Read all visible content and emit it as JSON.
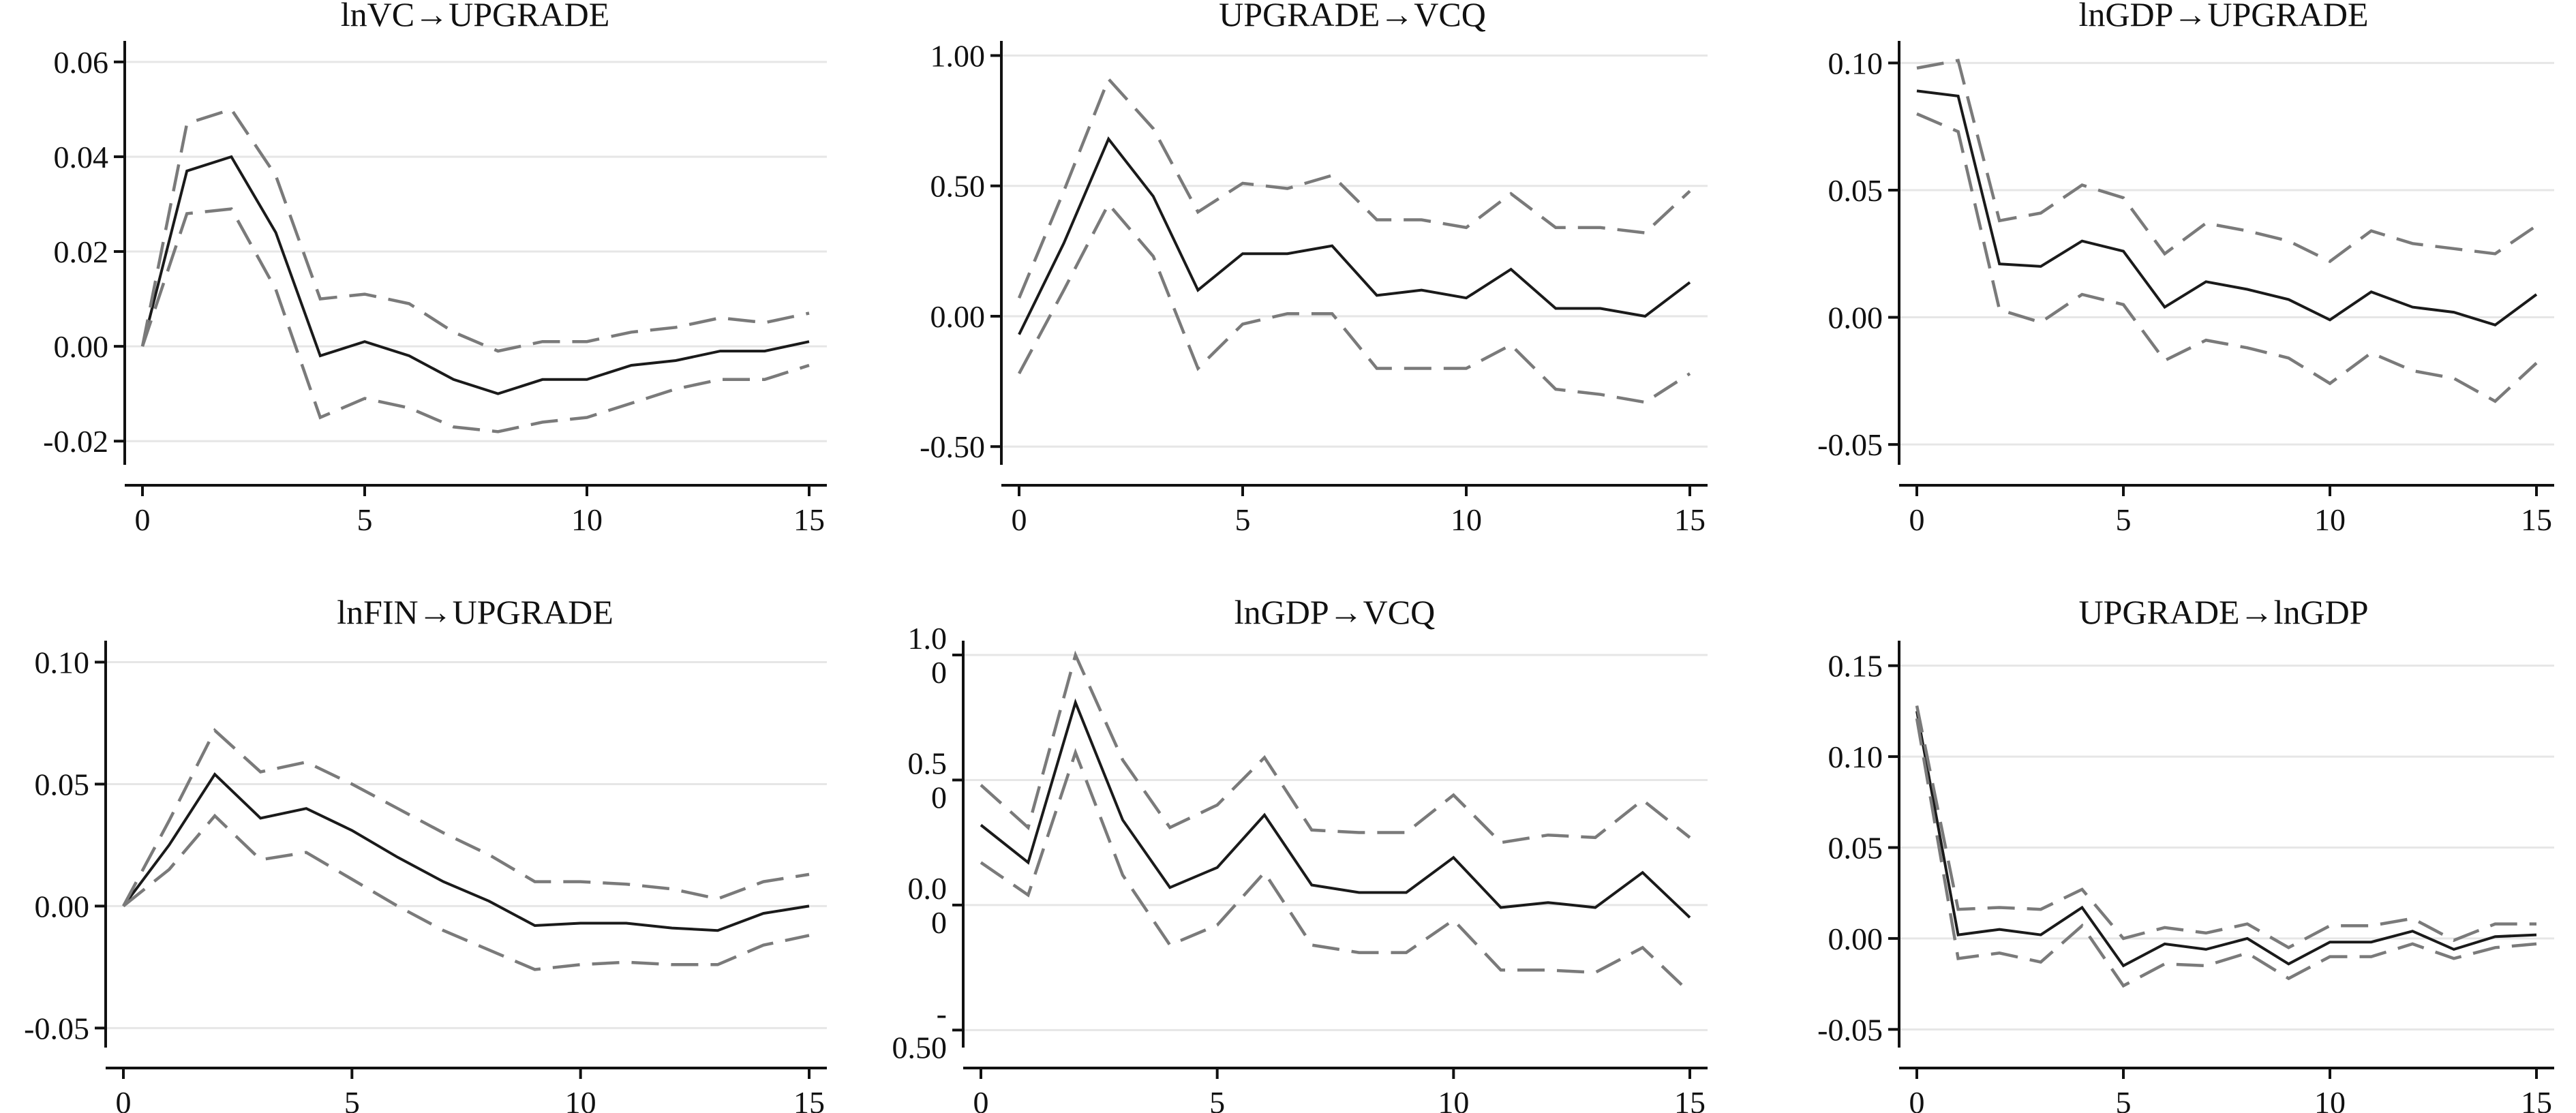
{
  "chart_data": [
    {
      "type": "line",
      "title": "lnVC→UPGRADE",
      "x": [
        0,
        1,
        2,
        3,
        4,
        5,
        6,
        7,
        8,
        9,
        10,
        11,
        12,
        13,
        14,
        15
      ],
      "xticks": [
        "0",
        "5",
        "10",
        "15"
      ],
      "xlim": [
        0,
        15
      ],
      "ylim": [
        -0.025,
        0.063
      ],
      "yticks": [
        -0.02,
        0.0,
        0.02,
        0.04,
        0.06
      ],
      "ytick_labels": [
        "-0.02",
        "0.00",
        "0.02",
        "0.04",
        "0.06"
      ],
      "grid": true,
      "series": [
        {
          "role": "irf",
          "values": [
            0.0,
            0.037,
            0.04,
            0.024,
            -0.002,
            0.001,
            -0.002,
            -0.007,
            -0.01,
            -0.007,
            -0.007,
            -0.004,
            -0.003,
            -0.001,
            -0.001,
            0.001
          ]
        },
        {
          "role": "upper",
          "values": [
            0.0,
            0.047,
            0.05,
            0.036,
            0.01,
            0.011,
            0.009,
            0.003,
            -0.001,
            0.001,
            0.001,
            0.003,
            0.004,
            0.006,
            0.005,
            0.007
          ]
        },
        {
          "role": "lower",
          "values": [
            0.0,
            0.028,
            0.029,
            0.012,
            -0.015,
            -0.011,
            -0.013,
            -0.017,
            -0.018,
            -0.016,
            -0.015,
            -0.012,
            -0.009,
            -0.007,
            -0.007,
            -0.004
          ]
        }
      ]
    },
    {
      "type": "line",
      "title": "UPGRADE→VCQ",
      "x": [
        0,
        1,
        2,
        3,
        4,
        5,
        6,
        7,
        8,
        9,
        10,
        11,
        12,
        13,
        14,
        15
      ],
      "xticks": [
        "0",
        "5",
        "10",
        "15"
      ],
      "xlim": [
        0,
        15
      ],
      "ylim": [
        -0.57,
        1.03
      ],
      "yticks": [
        -0.5,
        0.0,
        0.5,
        1.0
      ],
      "ytick_labels": [
        "-0.50",
        "0.00",
        "0.50",
        "1.00"
      ],
      "grid": true,
      "series": [
        {
          "role": "irf",
          "values": [
            -0.07,
            0.28,
            0.68,
            0.46,
            0.1,
            0.24,
            0.24,
            0.27,
            0.08,
            0.1,
            0.07,
            0.18,
            0.03,
            0.03,
            0.0,
            0.13
          ]
        },
        {
          "role": "upper",
          "values": [
            0.07,
            0.48,
            0.91,
            0.72,
            0.4,
            0.51,
            0.49,
            0.54,
            0.37,
            0.37,
            0.34,
            0.47,
            0.34,
            0.34,
            0.32,
            0.48
          ]
        },
        {
          "role": "lower",
          "values": [
            -0.22,
            0.1,
            0.43,
            0.23,
            -0.2,
            -0.03,
            0.01,
            0.01,
            -0.2,
            -0.2,
            -0.2,
            -0.11,
            -0.28,
            -0.3,
            -0.33,
            -0.22
          ]
        }
      ]
    },
    {
      "type": "line",
      "title": "lnGDP→UPGRADE",
      "x": [
        0,
        1,
        2,
        3,
        4,
        5,
        6,
        7,
        8,
        9,
        10,
        11,
        12,
        13,
        14,
        15
      ],
      "xticks": [
        "0",
        "5",
        "10",
        "15"
      ],
      "xlim": [
        0,
        15
      ],
      "ylim": [
        -0.058,
        0.106
      ],
      "yticks": [
        -0.05,
        0.0,
        0.05,
        0.1
      ],
      "ytick_labels": [
        "-0.05",
        "0.00",
        "0.05",
        "0.10"
      ],
      "grid": true,
      "series": [
        {
          "role": "irf",
          "values": [
            0.089,
            0.087,
            0.021,
            0.02,
            0.03,
            0.026,
            0.004,
            0.014,
            0.011,
            0.007,
            -0.001,
            0.01,
            0.004,
            0.002,
            -0.003,
            0.009
          ]
        },
        {
          "role": "upper",
          "values": [
            0.098,
            0.101,
            0.038,
            0.041,
            0.052,
            0.047,
            0.025,
            0.037,
            0.034,
            0.03,
            0.022,
            0.034,
            0.029,
            0.027,
            0.025,
            0.036
          ]
        },
        {
          "role": "lower",
          "values": [
            0.08,
            0.073,
            0.003,
            -0.002,
            0.009,
            0.005,
            -0.017,
            -0.009,
            -0.012,
            -0.016,
            -0.026,
            -0.014,
            -0.021,
            -0.024,
            -0.033,
            -0.018
          ]
        }
      ]
    },
    {
      "type": "line",
      "title": "lnFIN→UPGRADE",
      "x": [
        0,
        1,
        2,
        3,
        4,
        5,
        6,
        7,
        8,
        9,
        10,
        11,
        12,
        13,
        14,
        15
      ],
      "xticks": [
        "0",
        "5",
        "10",
        "15"
      ],
      "xlim": [
        0,
        15
      ],
      "ylim": [
        -0.058,
        0.106
      ],
      "yticks": [
        -0.05,
        0.0,
        0.05,
        0.1
      ],
      "ytick_labels": [
        "-0.05",
        "0.00",
        "0.05",
        "0.10"
      ],
      "grid": true,
      "series": [
        {
          "role": "irf",
          "values": [
            0.0,
            0.025,
            0.054,
            0.036,
            0.04,
            0.031,
            0.02,
            0.01,
            0.002,
            -0.008,
            -0.007,
            -0.007,
            -0.009,
            -0.01,
            -0.003,
            0.0
          ]
        },
        {
          "role": "upper",
          "values": [
            0.0,
            0.035,
            0.072,
            0.055,
            0.059,
            0.05,
            0.04,
            0.03,
            0.021,
            0.01,
            0.01,
            0.009,
            0.007,
            0.003,
            0.01,
            0.013
          ]
        },
        {
          "role": "lower",
          "values": [
            0.0,
            0.015,
            0.037,
            0.019,
            0.022,
            0.011,
            0.0,
            -0.01,
            -0.018,
            -0.026,
            -0.024,
            -0.023,
            -0.024,
            -0.024,
            -0.016,
            -0.012
          ]
        }
      ]
    },
    {
      "type": "line",
      "title": "lnGDP→VCQ",
      "x": [
        0,
        1,
        2,
        3,
        4,
        5,
        6,
        7,
        8,
        9,
        10,
        11,
        12,
        13,
        14,
        15
      ],
      "xticks": [
        "0",
        "5",
        "10",
        "15"
      ],
      "xlim": [
        0,
        15
      ],
      "ylim": [
        -0.57,
        1.03
      ],
      "yticks": [
        -0.5,
        0.0,
        0.5,
        1.0
      ],
      "ytick_labels": [
        "-\n0.50",
        "0.0\n0",
        "0.5\n0",
        "1.0\n0"
      ],
      "grid": true,
      "series": [
        {
          "role": "irf",
          "values": [
            0.32,
            0.17,
            0.81,
            0.34,
            0.07,
            0.15,
            0.36,
            0.08,
            0.05,
            0.05,
            0.19,
            -0.01,
            0.01,
            -0.01,
            0.13,
            -0.05
          ]
        },
        {
          "role": "upper",
          "values": [
            0.48,
            0.31,
            1.0,
            0.58,
            0.31,
            0.4,
            0.59,
            0.3,
            0.29,
            0.29,
            0.44,
            0.25,
            0.28,
            0.27,
            0.42,
            0.27
          ]
        },
        {
          "role": "lower",
          "values": [
            0.17,
            0.04,
            0.61,
            0.12,
            -0.16,
            -0.08,
            0.13,
            -0.16,
            -0.19,
            -0.19,
            -0.06,
            -0.26,
            -0.26,
            -0.27,
            -0.17,
            -0.35
          ]
        }
      ]
    },
    {
      "type": "line",
      "title": "UPGRADE→lnGDP",
      "x": [
        0,
        1,
        2,
        3,
        4,
        5,
        6,
        7,
        8,
        9,
        10,
        11,
        12,
        13,
        14,
        15
      ],
      "xticks": [
        "0",
        "5",
        "10",
        "15"
      ],
      "xlim": [
        0,
        15
      ],
      "ylim": [
        -0.06,
        0.16
      ],
      "yticks": [
        -0.05,
        0.0,
        0.05,
        0.1,
        0.15
      ],
      "ytick_labels": [
        "-0.05",
        "0.00",
        "0.05",
        "0.10",
        "0.15"
      ],
      "grid": true,
      "series": [
        {
          "role": "irf",
          "values": [
            0.125,
            0.002,
            0.005,
            0.002,
            0.017,
            -0.015,
            -0.003,
            -0.006,
            0.0,
            -0.014,
            -0.002,
            -0.002,
            0.004,
            -0.006,
            0.001,
            0.002
          ]
        },
        {
          "role": "upper",
          "values": [
            0.128,
            0.016,
            0.017,
            0.016,
            0.027,
            0.0,
            0.006,
            0.003,
            0.008,
            -0.005,
            0.007,
            0.007,
            0.011,
            -0.001,
            0.008,
            0.008
          ]
        },
        {
          "role": "lower",
          "values": [
            0.121,
            -0.011,
            -0.008,
            -0.013,
            0.007,
            -0.026,
            -0.014,
            -0.015,
            -0.008,
            -0.022,
            -0.01,
            -0.01,
            -0.003,
            -0.011,
            -0.005,
            -0.003
          ]
        }
      ]
    }
  ]
}
